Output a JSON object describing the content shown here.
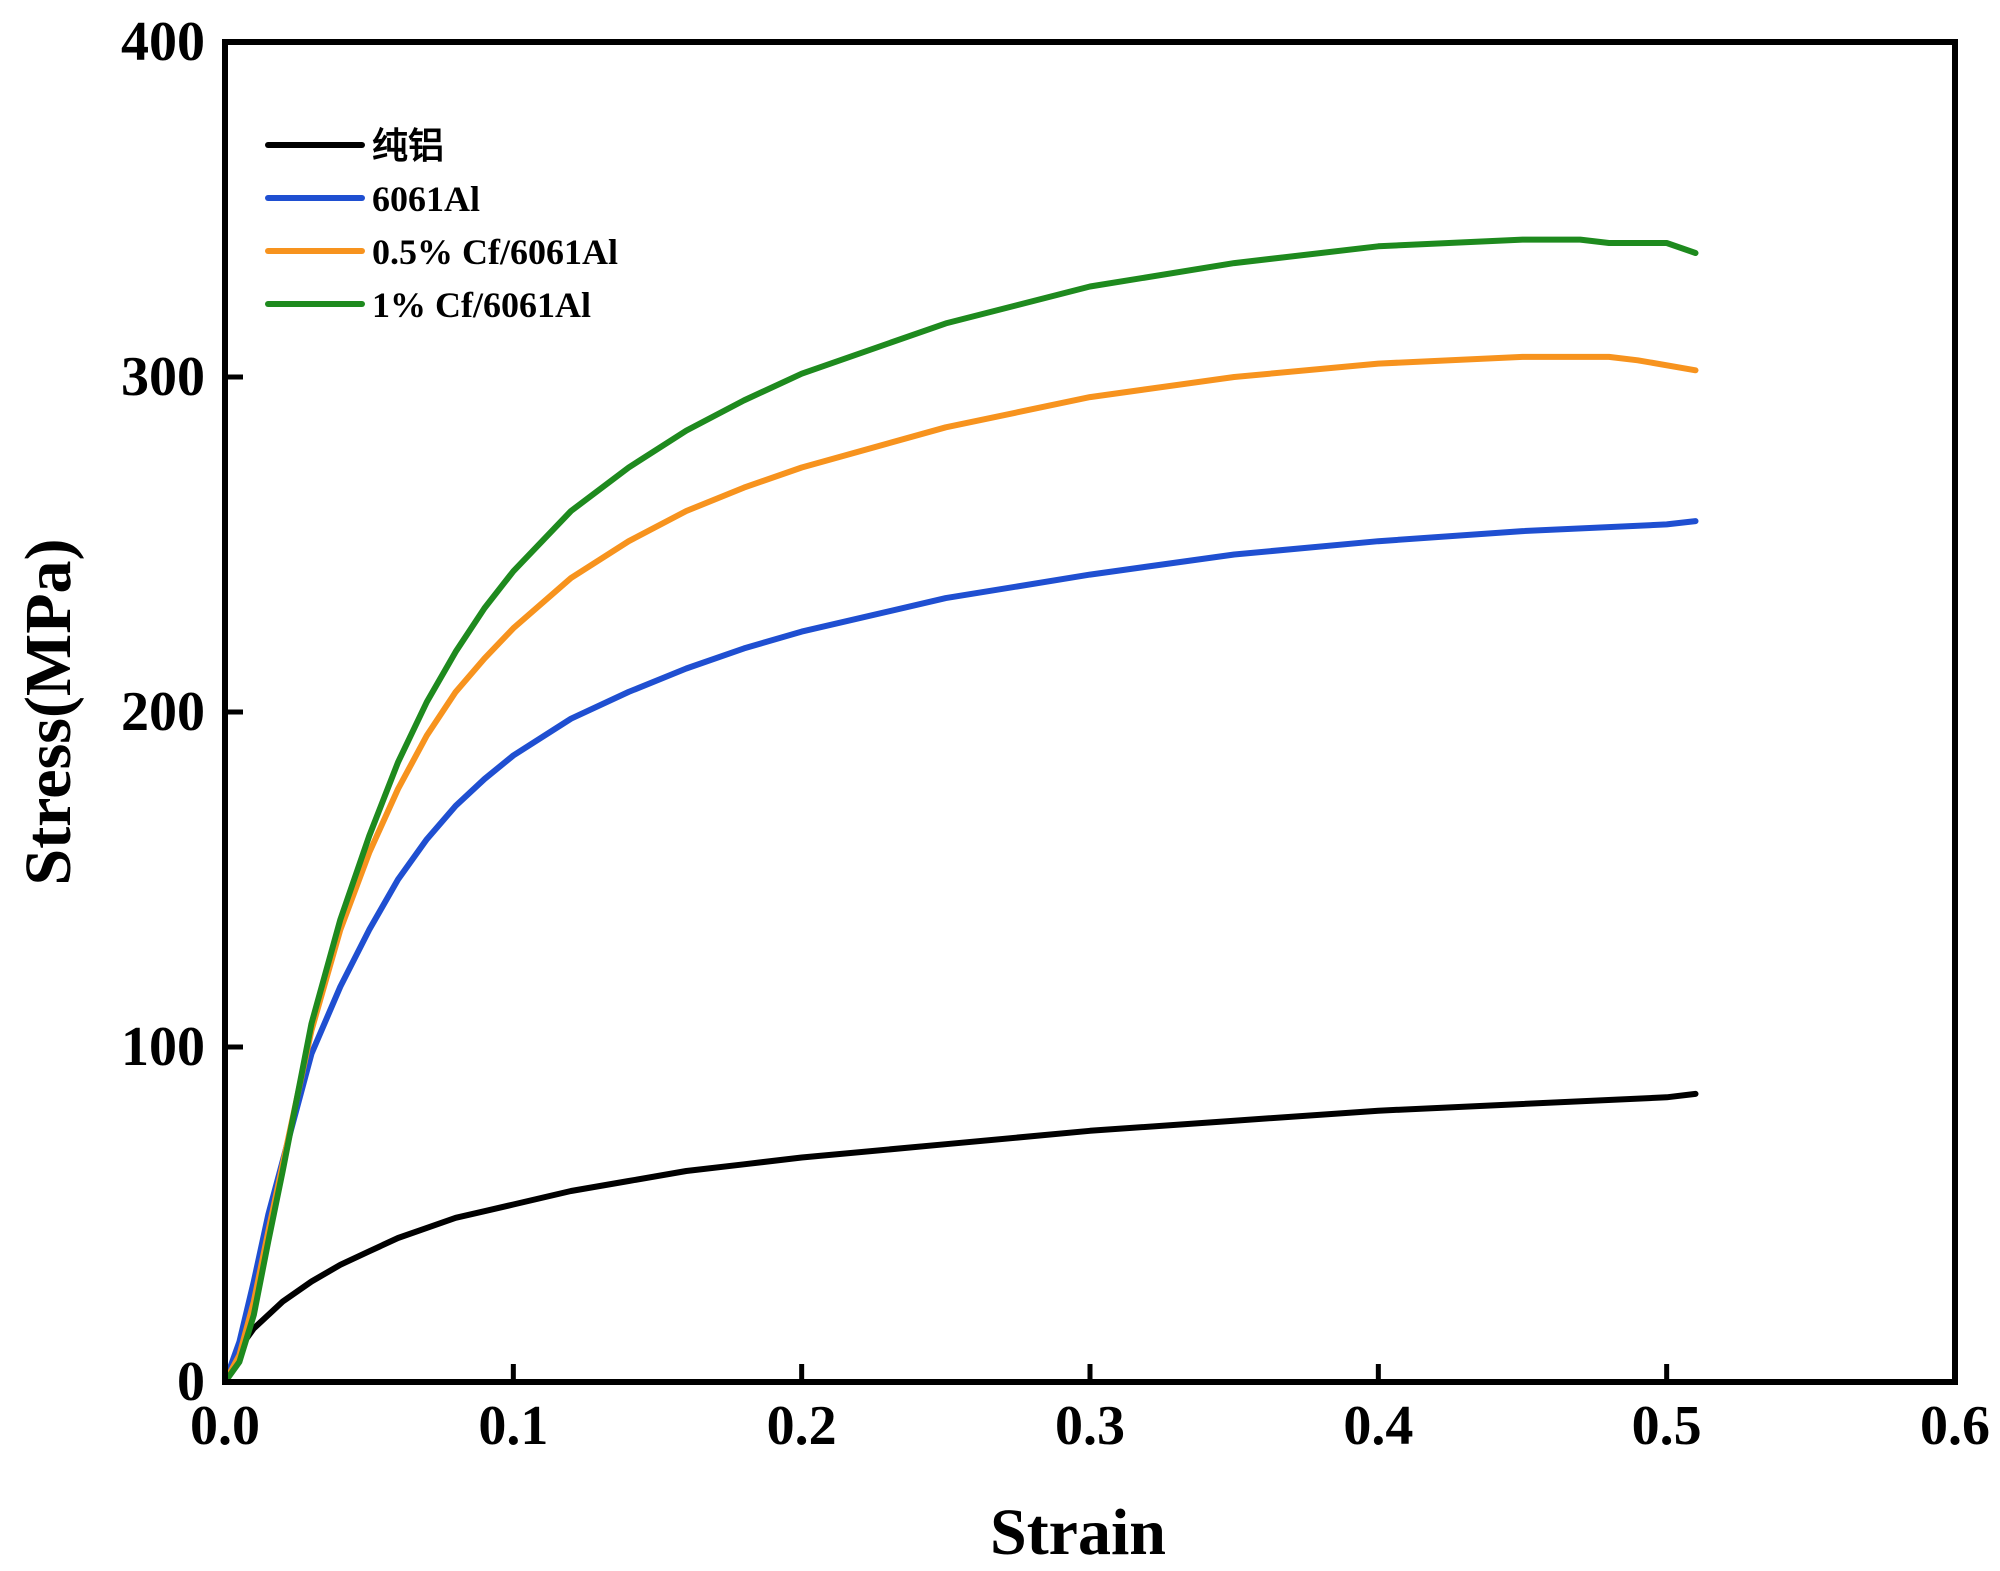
{
  "chart_data": {
    "type": "line",
    "title": "",
    "xlabel": "Strain",
    "ylabel": "Stress(MPa)",
    "xlim": [
      0.0,
      0.6
    ],
    "ylim": [
      0,
      400
    ],
    "xticks": [
      0.0,
      0.1,
      0.2,
      0.3,
      0.4,
      0.5,
      0.6
    ],
    "xtick_labels": [
      "0.0",
      "0.1",
      "0.2",
      "0.3",
      "0.4",
      "0.5",
      "0.6"
    ],
    "yticks": [
      0,
      100,
      200,
      300,
      400
    ],
    "ytick_labels": [
      "0",
      "100",
      "200",
      "300",
      "400"
    ],
    "grid": false,
    "legend_position": "top-left",
    "series": [
      {
        "name": "纯铝",
        "color": "#000000",
        "points": [
          [
            0,
            0
          ],
          [
            0.005,
            10
          ],
          [
            0.01,
            16
          ],
          [
            0.02,
            24
          ],
          [
            0.03,
            30
          ],
          [
            0.04,
            35
          ],
          [
            0.05,
            39
          ],
          [
            0.06,
            43
          ],
          [
            0.07,
            46
          ],
          [
            0.08,
            49
          ],
          [
            0.09,
            51
          ],
          [
            0.1,
            53
          ],
          [
            0.12,
            57
          ],
          [
            0.14,
            60
          ],
          [
            0.16,
            63
          ],
          [
            0.18,
            65
          ],
          [
            0.2,
            67
          ],
          [
            0.25,
            71
          ],
          [
            0.3,
            75
          ],
          [
            0.35,
            78
          ],
          [
            0.4,
            81
          ],
          [
            0.45,
            83
          ],
          [
            0.5,
            85
          ],
          [
            0.51,
            86
          ]
        ]
      },
      {
        "name": "6061Al",
        "color": "#1F4FD1",
        "points": [
          [
            0,
            0
          ],
          [
            0.005,
            12
          ],
          [
            0.01,
            30
          ],
          [
            0.015,
            50
          ],
          [
            0.02,
            66
          ],
          [
            0.025,
            82
          ],
          [
            0.03,
            98
          ],
          [
            0.04,
            118
          ],
          [
            0.05,
            135
          ],
          [
            0.06,
            150
          ],
          [
            0.07,
            162
          ],
          [
            0.08,
            172
          ],
          [
            0.09,
            180
          ],
          [
            0.1,
            187
          ],
          [
            0.12,
            198
          ],
          [
            0.14,
            206
          ],
          [
            0.16,
            213
          ],
          [
            0.18,
            219
          ],
          [
            0.2,
            224
          ],
          [
            0.25,
            234
          ],
          [
            0.3,
            241
          ],
          [
            0.35,
            247
          ],
          [
            0.4,
            251
          ],
          [
            0.45,
            254
          ],
          [
            0.5,
            256
          ],
          [
            0.51,
            257
          ]
        ]
      },
      {
        "name": "0.5% Cf/6061Al",
        "color": "#F7931E",
        "points": [
          [
            0,
            0
          ],
          [
            0.005,
            8
          ],
          [
            0.01,
            24
          ],
          [
            0.015,
            45
          ],
          [
            0.02,
            65
          ],
          [
            0.025,
            85
          ],
          [
            0.03,
            105
          ],
          [
            0.04,
            135
          ],
          [
            0.05,
            158
          ],
          [
            0.06,
            177
          ],
          [
            0.07,
            193
          ],
          [
            0.08,
            206
          ],
          [
            0.09,
            216
          ],
          [
            0.1,
            225
          ],
          [
            0.12,
            240
          ],
          [
            0.14,
            251
          ],
          [
            0.16,
            260
          ],
          [
            0.18,
            267
          ],
          [
            0.2,
            273
          ],
          [
            0.25,
            285
          ],
          [
            0.3,
            294
          ],
          [
            0.35,
            300
          ],
          [
            0.4,
            304
          ],
          [
            0.45,
            306
          ],
          [
            0.48,
            306
          ],
          [
            0.49,
            305
          ],
          [
            0.51,
            302
          ]
        ]
      },
      {
        "name": "1% Cf/6061Al",
        "color": "#1E8A1E",
        "points": [
          [
            0,
            0
          ],
          [
            0.005,
            6
          ],
          [
            0.01,
            20
          ],
          [
            0.015,
            42
          ],
          [
            0.02,
            63
          ],
          [
            0.025,
            85
          ],
          [
            0.03,
            107
          ],
          [
            0.04,
            138
          ],
          [
            0.05,
            163
          ],
          [
            0.06,
            185
          ],
          [
            0.07,
            203
          ],
          [
            0.08,
            218
          ],
          [
            0.09,
            231
          ],
          [
            0.1,
            242
          ],
          [
            0.12,
            260
          ],
          [
            0.14,
            273
          ],
          [
            0.16,
            284
          ],
          [
            0.18,
            293
          ],
          [
            0.2,
            301
          ],
          [
            0.25,
            316
          ],
          [
            0.3,
            327
          ],
          [
            0.35,
            334
          ],
          [
            0.4,
            339
          ],
          [
            0.45,
            341
          ],
          [
            0.47,
            341
          ],
          [
            0.48,
            340
          ],
          [
            0.5,
            340
          ],
          [
            0.51,
            337
          ]
        ]
      }
    ]
  }
}
